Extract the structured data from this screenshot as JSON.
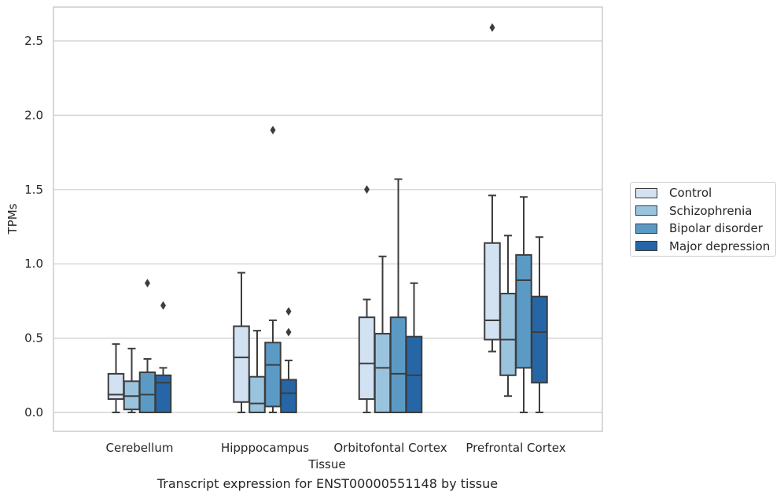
{
  "chart_data": {
    "type": "box",
    "title": "Transcript expression for ENST00000551148 by tissue",
    "xlabel": "Tissue",
    "ylabel": "TPMs",
    "ylim": [
      -0.12,
      2.7
    ],
    "yticks": [
      0.0,
      0.5,
      1.0,
      1.5,
      2.0,
      2.5
    ],
    "ytick_labels": [
      "0.0",
      "0.5",
      "1.0",
      "1.5",
      "2.0",
      "2.5"
    ],
    "grid": "horizontal",
    "legend_position": "right",
    "categories": [
      "Cerebellum",
      "Hipppocampus",
      "Orbitofontal Cortex",
      "Prefrontal Cortex"
    ],
    "series": [
      {
        "name": "Control",
        "color": "#d2e2f2",
        "boxes": [
          {
            "whisker_low": 0.0,
            "q1": 0.09,
            "median": 0.12,
            "q3": 0.26,
            "whisker_high": 0.46,
            "outliers": []
          },
          {
            "whisker_low": 0.0,
            "q1": 0.07,
            "median": 0.37,
            "q3": 0.58,
            "whisker_high": 0.94,
            "outliers": []
          },
          {
            "whisker_low": 0.0,
            "q1": 0.09,
            "median": 0.33,
            "q3": 0.64,
            "whisker_high": 0.76,
            "outliers": [
              1.5
            ]
          },
          {
            "whisker_low": 0.41,
            "q1": 0.49,
            "median": 0.62,
            "q3": 1.14,
            "whisker_high": 1.46,
            "outliers": [
              2.59
            ]
          }
        ]
      },
      {
        "name": "Schizophrenia",
        "color": "#9ac3dd",
        "boxes": [
          {
            "whisker_low": 0.0,
            "q1": 0.02,
            "median": 0.11,
            "q3": 0.21,
            "whisker_high": 0.43,
            "outliers": []
          },
          {
            "whisker_low": 0.0,
            "q1": 0.0,
            "median": 0.06,
            "q3": 0.24,
            "whisker_high": 0.55,
            "outliers": []
          },
          {
            "whisker_low": 0.0,
            "q1": 0.0,
            "median": 0.3,
            "q3": 0.53,
            "whisker_high": 1.05,
            "outliers": []
          },
          {
            "whisker_low": 0.11,
            "q1": 0.25,
            "median": 0.49,
            "q3": 0.8,
            "whisker_high": 1.19,
            "outliers": []
          }
        ]
      },
      {
        "name": "Bipolar disorder",
        "color": "#5b9ac5",
        "boxes": [
          {
            "whisker_low": 0.0,
            "q1": 0.0,
            "median": 0.12,
            "q3": 0.27,
            "whisker_high": 0.36,
            "outliers": [
              0.87
            ]
          },
          {
            "whisker_low": 0.0,
            "q1": 0.04,
            "median": 0.32,
            "q3": 0.47,
            "whisker_high": 0.62,
            "outliers": [
              1.9
            ]
          },
          {
            "whisker_low": 0.0,
            "q1": 0.0,
            "median": 0.26,
            "q3": 0.64,
            "whisker_high": 1.57,
            "outliers": []
          },
          {
            "whisker_low": 0.0,
            "q1": 0.3,
            "median": 0.89,
            "q3": 1.06,
            "whisker_high": 1.45,
            "outliers": []
          }
        ]
      },
      {
        "name": "Major depression",
        "color": "#2666a6",
        "boxes": [
          {
            "whisker_low": 0.0,
            "q1": 0.0,
            "median": 0.2,
            "q3": 0.25,
            "whisker_high": 0.3,
            "outliers": [
              0.72
            ]
          },
          {
            "whisker_low": 0.0,
            "q1": 0.0,
            "median": 0.13,
            "q3": 0.22,
            "whisker_high": 0.35,
            "outliers": [
              0.54,
              0.68
            ]
          },
          {
            "whisker_low": 0.0,
            "q1": 0.0,
            "median": 0.25,
            "q3": 0.51,
            "whisker_high": 0.87,
            "outliers": []
          },
          {
            "whisker_low": 0.0,
            "q1": 0.2,
            "median": 0.54,
            "q3": 0.78,
            "whisker_high": 1.18,
            "outliers": []
          }
        ]
      }
    ]
  }
}
